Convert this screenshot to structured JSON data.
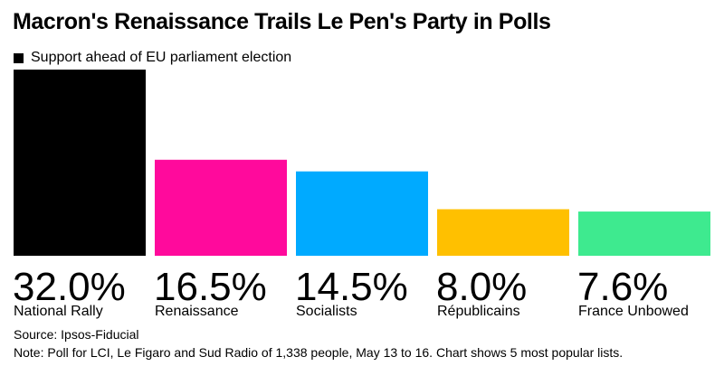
{
  "title": "Macron's Renaissance Trails Le Pen's Party in Polls",
  "source": "Source: Ipsos-Fiducial",
  "note": "Note: Poll for LCI, Le Figaro and Sud Radio of 1,338 people, May 13 to 16. Chart shows 5 most popular lists.",
  "chart_data": {
    "type": "bar",
    "title": "Macron's Renaissance Trails Le Pen's Party in Polls",
    "categories": [
      "National Rally",
      "Renaissance",
      "Socialists",
      "Républicains",
      "France Unbowed"
    ],
    "series": [
      {
        "name": "Support ahead of EU parliament election",
        "values": [
          32.0,
          16.5,
          14.5,
          8.0,
          7.6
        ]
      }
    ],
    "value_labels": [
      "32.0%",
      "16.5%",
      "14.5%",
      "8.0%",
      "7.6%"
    ],
    "bar_colors": [
      "#000000",
      "#ff0a9c",
      "#00aaff",
      "#ffc000",
      "#3eea8f"
    ],
    "ylim": [
      0,
      32.0
    ],
    "xlabel": "",
    "ylabel": "",
    "grid": false,
    "legend": "top-left"
  }
}
